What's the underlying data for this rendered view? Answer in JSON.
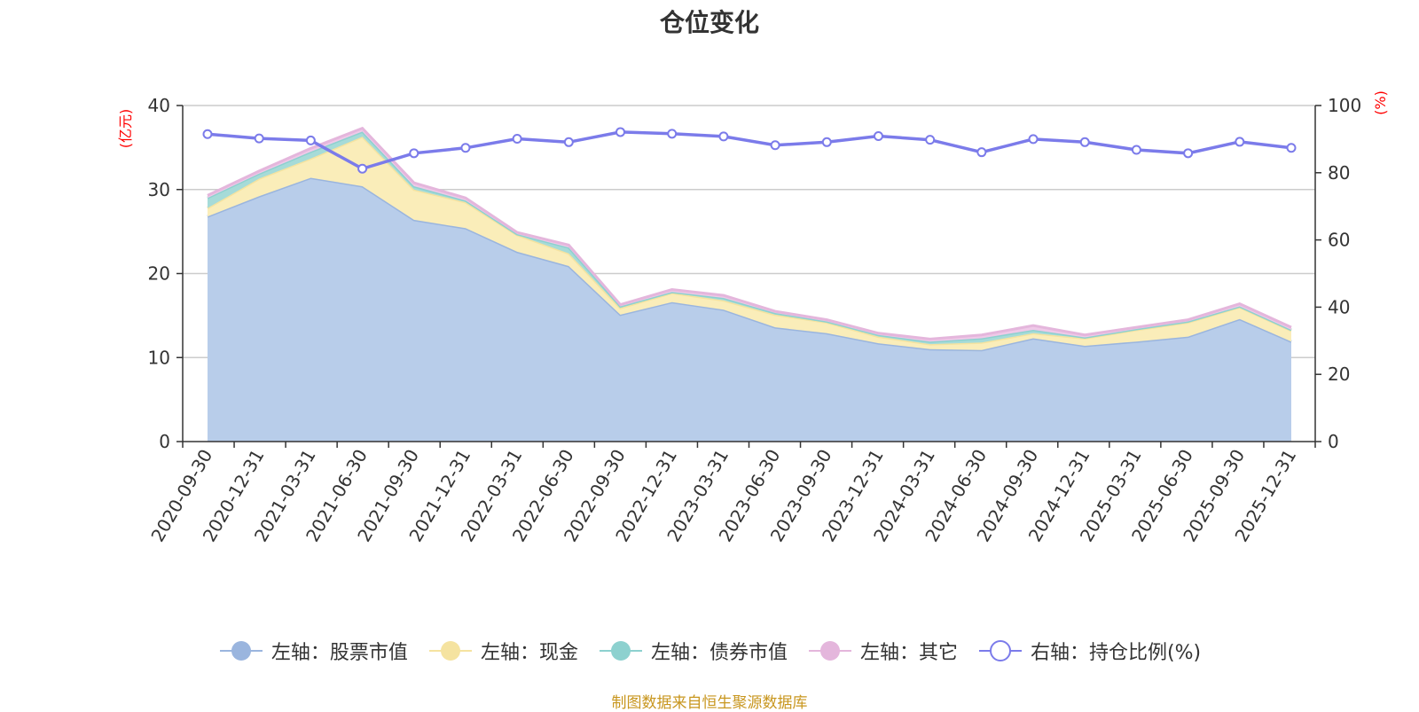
{
  "chart_data": {
    "type": "area",
    "title": "仓位变化",
    "categories": [
      "2020-09-30",
      "2020-12-31",
      "2021-03-31",
      "2021-06-30",
      "2021-09-30",
      "2021-12-31",
      "2022-03-31",
      "2022-06-30",
      "2022-09-30",
      "2022-12-31",
      "2023-03-31",
      "2023-06-30",
      "2023-09-30",
      "2023-12-31",
      "2024-03-31",
      "2024-06-30",
      "2024-09-30",
      "2024-12-31",
      "2025-03-31",
      "2025-06-30",
      "2025-09-30",
      "2025-12-31"
    ],
    "left_axis": {
      "unit": "(亿元)",
      "ylim": [
        0,
        40
      ],
      "ticks": [
        0,
        10,
        20,
        30,
        40
      ]
    },
    "right_axis": {
      "unit": "(%)",
      "ylim": [
        0,
        100
      ],
      "ticks": [
        0,
        20,
        40,
        60,
        80,
        100
      ]
    },
    "series": [
      {
        "name": "左轴：股票市值",
        "axis": "left",
        "kind": "stacked-area",
        "line_color": "#9ab5de",
        "fill_color": "#b8cdea",
        "values": [
          26.8,
          29.2,
          31.4,
          30.4,
          26.4,
          25.4,
          22.6,
          20.9,
          15.1,
          16.6,
          15.7,
          13.6,
          12.9,
          11.7,
          11.0,
          10.9,
          12.3,
          11.4,
          11.9,
          12.5,
          14.6,
          11.9
        ]
      },
      {
        "name": "左轴：现金",
        "axis": "left",
        "kind": "stacked-area",
        "line_color": "#f5e3a0",
        "fill_color": "#faedb9",
        "values": [
          1.0,
          2.1,
          2.3,
          5.9,
          3.6,
          3.1,
          2.0,
          1.5,
          0.8,
          1.1,
          1.1,
          1.5,
          1.3,
          0.8,
          0.6,
          0.9,
          0.6,
          0.9,
          1.4,
          1.7,
          1.4,
          1.3
        ]
      },
      {
        "name": "左轴：债券市值",
        "axis": "left",
        "kind": "stacked-area",
        "line_color": "#8dd1cf",
        "fill_color": "#a6dbd8",
        "values": [
          1.2,
          0.6,
          0.8,
          0.6,
          0.4,
          0.2,
          0.1,
          0.7,
          0.2,
          0.1,
          0.3,
          0.2,
          0.1,
          0.2,
          0.3,
          0.5,
          0.4,
          0.1,
          0.1,
          0.1,
          0.1,
          0.1
        ]
      },
      {
        "name": "左轴：其它",
        "axis": "left",
        "kind": "stacked-area",
        "line_color": "#e4b6dc",
        "fill_color": "#efc9e8",
        "values": [
          0.3,
          0.3,
          0.4,
          0.4,
          0.4,
          0.3,
          0.2,
          0.3,
          0.2,
          0.3,
          0.3,
          0.2,
          0.2,
          0.2,
          0.3,
          0.4,
          0.5,
          0.3,
          0.2,
          0.2,
          0.3,
          0.3
        ]
      },
      {
        "name": "右轴：持仓比例(%)",
        "axis": "right",
        "kind": "line",
        "line_color": "#7b7bea",
        "fill_color": "#ffffff",
        "values": [
          91.5,
          90.2,
          89.6,
          81.2,
          85.8,
          87.4,
          90.1,
          89.1,
          92.1,
          91.6,
          90.8,
          88.2,
          89.1,
          90.9,
          89.8,
          86.1,
          90.0,
          89.1,
          86.8,
          85.8,
          89.2,
          87.4
        ]
      }
    ]
  },
  "footer": {
    "source": "制图数据来自恒生聚源数据库"
  }
}
